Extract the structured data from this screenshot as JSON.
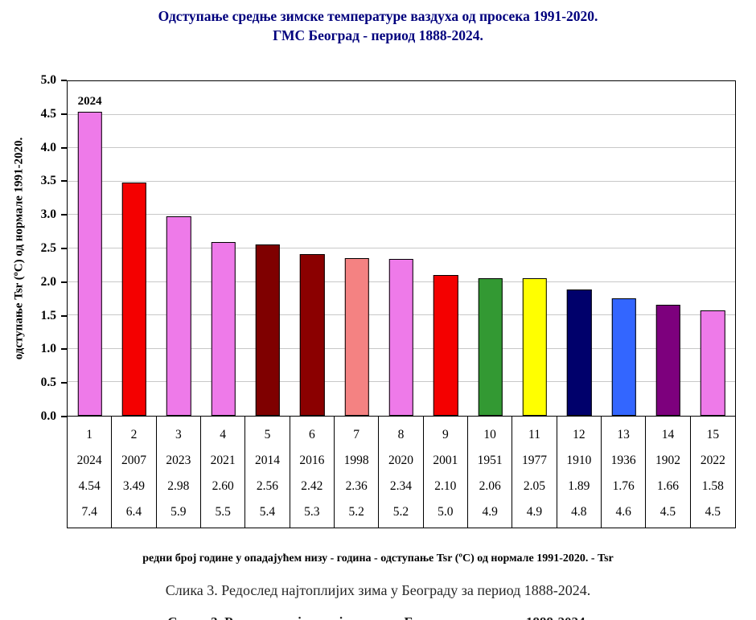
{
  "title": {
    "line1": "Одступање средње зимске температуре ваздуха од просека 1991-2020.",
    "line2": "ГМС Београд - период 1888-2024."
  },
  "chart_data": {
    "type": "bar",
    "title": "Одступање средње зимске температуре ваздуха од просека 1991-2020. ГМС Београд - период 1888-2024.",
    "ylabel": "одступање Tsr (ºC) од нормале 1991-2020.",
    "ylim": [
      0,
      5
    ],
    "ytick_step": 0.5,
    "grid": "horizontal",
    "legend": "none",
    "yticks": [
      "5.0",
      "4.5",
      "4.0",
      "3.5",
      "3.0",
      "2.5",
      "2.0",
      "1.5",
      "1.0",
      "0.5",
      "0.0"
    ],
    "bars": [
      {
        "rank": "1",
        "year": "2024",
        "value": 4.54,
        "value_label": "4.54",
        "tsr": 7.4,
        "tsr_label": "7.4",
        "color": "#EE7AE9",
        "label_above": "2024"
      },
      {
        "rank": "2",
        "year": "2007",
        "value": 3.49,
        "value_label": "3.49",
        "tsr": 6.4,
        "tsr_label": "6.4",
        "color": "#F40000"
      },
      {
        "rank": "3",
        "year": "2023",
        "value": 2.98,
        "value_label": "2.98",
        "tsr": 5.9,
        "tsr_label": "5.9",
        "color": "#EE7AE9"
      },
      {
        "rank": "4",
        "year": "2021",
        "value": 2.6,
        "value_label": "2.60",
        "tsr": 5.5,
        "tsr_label": "5.5",
        "color": "#EE7AE9"
      },
      {
        "rank": "5",
        "year": "2014",
        "value": 2.56,
        "value_label": "2.56",
        "tsr": 5.4,
        "tsr_label": "5.4",
        "color": "#7f0000"
      },
      {
        "rank": "6",
        "year": "2016",
        "value": 2.42,
        "value_label": "2.42",
        "tsr": 5.3,
        "tsr_label": "5.3",
        "color": "#8b0000"
      },
      {
        "rank": "7",
        "year": "1998",
        "value": 2.36,
        "value_label": "2.36",
        "tsr": 5.2,
        "tsr_label": "5.2",
        "color": "#F48282"
      },
      {
        "rank": "8",
        "year": "2020",
        "value": 2.34,
        "value_label": "2.34",
        "tsr": 5.2,
        "tsr_label": "5.2",
        "color": "#EE7AE9"
      },
      {
        "rank": "9",
        "year": "2001",
        "value": 2.1,
        "value_label": "2.10",
        "tsr": 5.0,
        "tsr_label": "5.0",
        "color": "#F40000"
      },
      {
        "rank": "10",
        "year": "1951",
        "value": 2.06,
        "value_label": "2.06",
        "tsr": 4.9,
        "tsr_label": "4.9",
        "color": "#339933"
      },
      {
        "rank": "11",
        "year": "1977",
        "value": 2.05,
        "value_label": "2.05",
        "tsr": 4.9,
        "tsr_label": "4.9",
        "color": "#FFFF00"
      },
      {
        "rank": "12",
        "year": "1910",
        "value": 1.89,
        "value_label": "1.89",
        "tsr": 4.8,
        "tsr_label": "4.8",
        "color": "#00006B"
      },
      {
        "rank": "13",
        "year": "1936",
        "value": 1.76,
        "value_label": "1.76",
        "tsr": 4.6,
        "tsr_label": "4.6",
        "color": "#3366FF"
      },
      {
        "rank": "14",
        "year": "1902",
        "value": 1.66,
        "value_label": "1.66",
        "tsr": 4.5,
        "tsr_label": "4.5",
        "color": "#7D007D"
      },
      {
        "rank": "15",
        "year": "2022",
        "value": 1.58,
        "value_label": "1.58",
        "tsr": 4.5,
        "tsr_label": "4.5",
        "color": "#EE7AE9"
      }
    ]
  },
  "footnote": "редни број године у опадајућем низу  - година - одступање Tsr (ºC) од нормале 1991-2020. - Tsr",
  "caption": "Слика 3. Редослед најтоплијих зима у Београду за период 1888-2024."
}
